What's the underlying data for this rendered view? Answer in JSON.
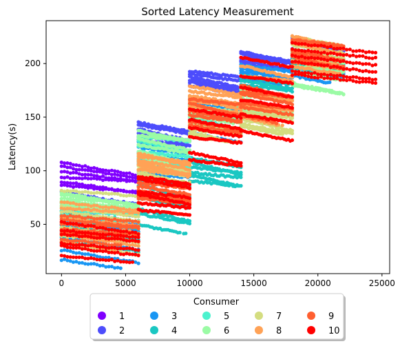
{
  "chart_data": {
    "type": "scatter",
    "title": "Sorted Latency Measurement",
    "xlabel": "",
    "ylabel": "Latency(s)",
    "xlim": [
      -1200,
      25600
    ],
    "ylim": [
      4,
      240
    ],
    "xticks": [
      0,
      5000,
      10000,
      15000,
      20000,
      25000
    ],
    "xtick_labels": [
      "0",
      "5000",
      "10000",
      "15000",
      "20000",
      "25000"
    ],
    "yticks": [
      50,
      100,
      150,
      200
    ],
    "ytick_labels": [
      "50",
      "100",
      "150",
      "200"
    ],
    "grid": false,
    "legend": {
      "title": "Consumer",
      "placement": "bottom-center outside",
      "columns": 5,
      "entries": [
        "1",
        "2",
        "3",
        "4",
        "5",
        "6",
        "7",
        "8",
        "9",
        "10"
      ]
    },
    "series": [
      {
        "name": "1",
        "color": "#8000ff",
        "segments": [
          [
            0,
            6000,
            84,
            110
          ]
        ]
      },
      {
        "name": "2",
        "color": "#4d4dfc",
        "segments": [
          [
            0,
            6000,
            40,
            84
          ],
          [
            6000,
            10000,
            128,
            147
          ],
          [
            10000,
            14000,
            178,
            195
          ],
          [
            14000,
            18000,
            200,
            212
          ],
          [
            18000,
            22000,
            195,
            228
          ]
        ]
      },
      {
        "name": "3",
        "color": "#1996f3",
        "segments": [
          [
            0,
            6000,
            15,
            58
          ],
          [
            6000,
            10000,
            96,
            132
          ],
          [
            10000,
            14000,
            132,
            168
          ],
          [
            14000,
            18000,
            185,
            200
          ],
          [
            18000,
            22000,
            188,
            212
          ]
        ]
      },
      {
        "name": "4",
        "color": "#1ac7c2",
        "segments": [
          [
            0,
            6000,
            30,
            63
          ],
          [
            6000,
            10000,
            47,
            98
          ],
          [
            10000,
            14000,
            88,
            116
          ],
          [
            14000,
            18000,
            172,
            192
          ],
          [
            18000,
            22000,
            195,
            210
          ]
        ]
      },
      {
        "name": "5",
        "color": "#4cf2ce",
        "segments": [
          [
            0,
            6000,
            55,
            72
          ],
          [
            6000,
            10000,
            105,
            135
          ],
          [
            10000,
            14000,
            148,
            168
          ]
        ]
      },
      {
        "name": "6",
        "color": "#9bfba5",
        "segments": [
          [
            0,
            6000,
            68,
            80
          ],
          [
            6000,
            10000,
            112,
            140
          ],
          [
            10000,
            14000,
            150,
            162
          ],
          [
            14000,
            18000,
            156,
            178
          ],
          [
            18000,
            22000,
            174,
            218
          ]
        ]
      },
      {
        "name": "7",
        "color": "#d4dd80",
        "segments": [
          [
            0,
            6000,
            25,
            85
          ],
          [
            6000,
            10000,
            95,
            110
          ],
          [
            10000,
            14000,
            132,
            148
          ],
          [
            14000,
            18000,
            140,
            160
          ],
          [
            18000,
            22000,
            202,
            228
          ]
        ]
      },
      {
        "name": "8",
        "color": "#ffa256",
        "segments": [
          [
            0,
            6000,
            32,
            75
          ],
          [
            6000,
            10000,
            100,
            118
          ],
          [
            10000,
            14000,
            160,
            180
          ],
          [
            14000,
            18000,
            148,
            200
          ],
          [
            18000,
            22000,
            196,
            228
          ]
        ]
      },
      {
        "name": "9",
        "color": "#ff5f30",
        "segments": [
          [
            0,
            6000,
            36,
            62
          ],
          [
            6000,
            10000,
            72,
            90
          ],
          [
            10000,
            14000,
            140,
            170
          ],
          [
            14000,
            18000,
            150,
            185
          ],
          [
            18000,
            22000,
            200,
            225
          ]
        ]
      },
      {
        "name": "10",
        "color": "#ff0000",
        "segments": [
          [
            0,
            6000,
            20,
            55
          ],
          [
            6000,
            10000,
            60,
            100
          ],
          [
            10000,
            14000,
            108,
            160
          ],
          [
            14000,
            18000,
            130,
            210
          ],
          [
            18000,
            24500,
            185,
            222
          ]
        ]
      }
    ]
  }
}
